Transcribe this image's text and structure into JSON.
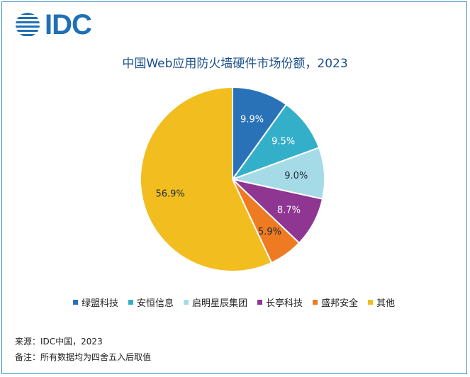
{
  "logo": {
    "text": "IDC",
    "icon": "idc-globe-icon"
  },
  "chart_data": {
    "type": "pie",
    "title": "中国Web应用防火墙硬件市场份额，2023",
    "slices": [
      {
        "label": "绿盟科技",
        "value": 9.9,
        "display": "9.9%",
        "color": "#2a72b8"
      },
      {
        "label": "安恒信息",
        "value": 9.5,
        "display": "9.5%",
        "color": "#34afc9"
      },
      {
        "label": "启明星辰集团",
        "value": 9.0,
        "display": "9.0%",
        "color": "#a5dbe7"
      },
      {
        "label": "长亭科技",
        "value": 8.7,
        "display": "8.7%",
        "color": "#8f3592"
      },
      {
        "label": "盛邦安全",
        "value": 5.9,
        "display": "5.9%",
        "color": "#ee7a22"
      },
      {
        "label": "其他",
        "value": 56.9,
        "display": "56.9%",
        "color": "#f2bd1f"
      }
    ],
    "legend_position": "bottom"
  },
  "footer": {
    "source": "来源：IDC中国，2023",
    "note": "备注：所有数据均为四舍五入后取值"
  }
}
